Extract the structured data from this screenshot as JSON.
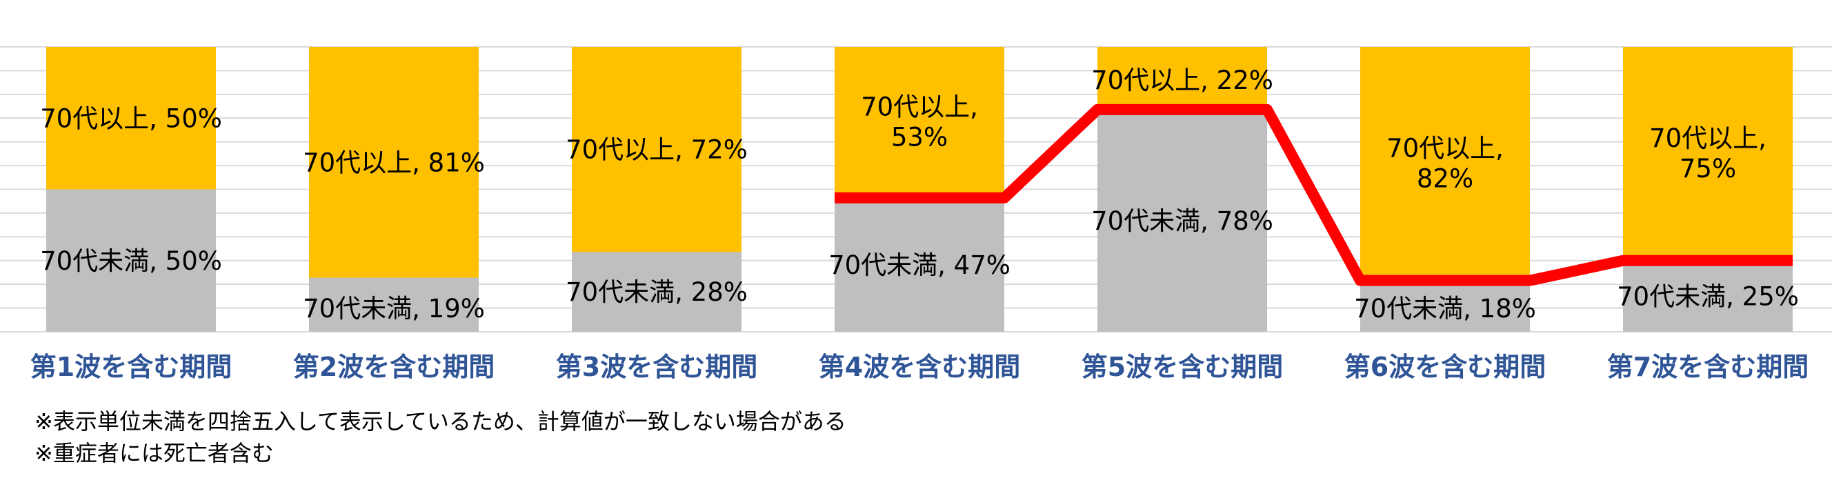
{
  "chart_data": {
    "type": "bar",
    "stacked": true,
    "percent": true,
    "categories": [
      "第1波を含む期間",
      "第2波を含む期間",
      "第3波を含む期間",
      "第4波を含む期間",
      "第5波を含む期間",
      "第6波を含む期間",
      "第7波を含む期間"
    ],
    "series": [
      {
        "name": "70代未満",
        "values": [
          50,
          19,
          28,
          47,
          78,
          18,
          25
        ],
        "labels": [
          "70代未満, 50%",
          "70代未満, 19%",
          "70代未満, 28%",
          "70代未満, 47%",
          "70代未満, 78%",
          "70代未満, 18%",
          "70代未満, 25%"
        ],
        "color": "#BFBFBF"
      },
      {
        "name": "70代以上",
        "values": [
          50,
          81,
          72,
          53,
          22,
          82,
          75
        ],
        "labels": [
          "70代以上, 50%",
          "70代以上, 81%",
          "70代以上, 72%",
          "70代以上, 53%",
          "70代以上, 22%",
          "70代以上, 82%",
          "70代以上, 75%"
        ],
        "color": "#FFC000"
      }
    ],
    "trend_line": {
      "from_category_index": 3,
      "values": [
        47,
        78,
        18,
        25
      ],
      "color": "#FF0000"
    },
    "ylim": [
      0,
      100
    ],
    "grid": true,
    "legend": "none",
    "category_label_color": "#2F5597"
  },
  "notes": [
    "※表示単位未満を四捨五入して表示しているため、計算値が一致しない場合がある",
    "※重症者には死亡者含む"
  ]
}
